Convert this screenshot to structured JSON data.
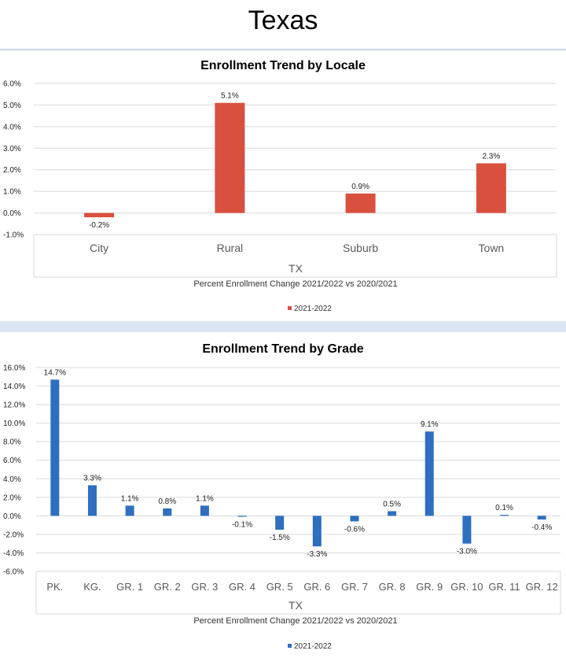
{
  "page": {
    "title": "Texas"
  },
  "chart_data": [
    {
      "type": "bar",
      "title": "Enrollment Trend by Locale",
      "categories": [
        "City",
        "Rural",
        "Suburb",
        "Town"
      ],
      "series": [
        {
          "name": "2021-2022",
          "values": [
            -0.2,
            5.1,
            0.9,
            2.3
          ],
          "labels": [
            "-0.2%",
            "5.1%",
            "0.9%",
            "2.3%"
          ]
        }
      ],
      "group_label": "TX",
      "xlabel": "Percent Enrollment Change 2021/2022 vs 2020/2021",
      "ylim": [
        -1.0,
        6.0
      ],
      "yticks": [
        "6.0%",
        "5.0%",
        "4.0%",
        "3.0%",
        "2.0%",
        "1.0%",
        "0.0%",
        "-1.0%"
      ],
      "grid": true,
      "legend_position": "bottom",
      "color": "#d9503f"
    },
    {
      "type": "bar",
      "title": "Enrollment Trend by Grade",
      "categories": [
        "PK.",
        "KG.",
        "GR. 1",
        "GR. 2",
        "GR. 3",
        "GR. 4",
        "GR. 5",
        "GR. 6",
        "GR. 7",
        "GR. 8",
        "GR. 9",
        "GR. 10",
        "GR. 11",
        "GR. 12"
      ],
      "series": [
        {
          "name": "2021-2022",
          "values": [
            14.7,
            3.3,
            1.1,
            0.8,
            1.1,
            -0.1,
            -1.5,
            -3.3,
            -0.6,
            0.5,
            9.1,
            -3.0,
            0.1,
            -0.4
          ],
          "labels": [
            "14.7%",
            "3.3%",
            "1.1%",
            "0.8%",
            "1.1%",
            "-0.1%",
            "-1.5%",
            "-3.3%",
            "-0.6%",
            "0.5%",
            "9.1%",
            "-3.0%",
            "0.1%",
            "-0.4%"
          ]
        }
      ],
      "group_label": "TX",
      "xlabel": "Percent Enrollment Change 2021/2022 vs 2020/2021",
      "ylim": [
        -6.0,
        16.0
      ],
      "yticks": [
        "16.0%",
        "14.0%",
        "12.0%",
        "10.0%",
        "8.0%",
        "6.0%",
        "4.0%",
        "2.0%",
        "0.0%",
        "-2.0%",
        "-4.0%",
        "-6.0%"
      ],
      "grid": true,
      "legend_position": "bottom",
      "color": "#2e6fbf"
    }
  ]
}
